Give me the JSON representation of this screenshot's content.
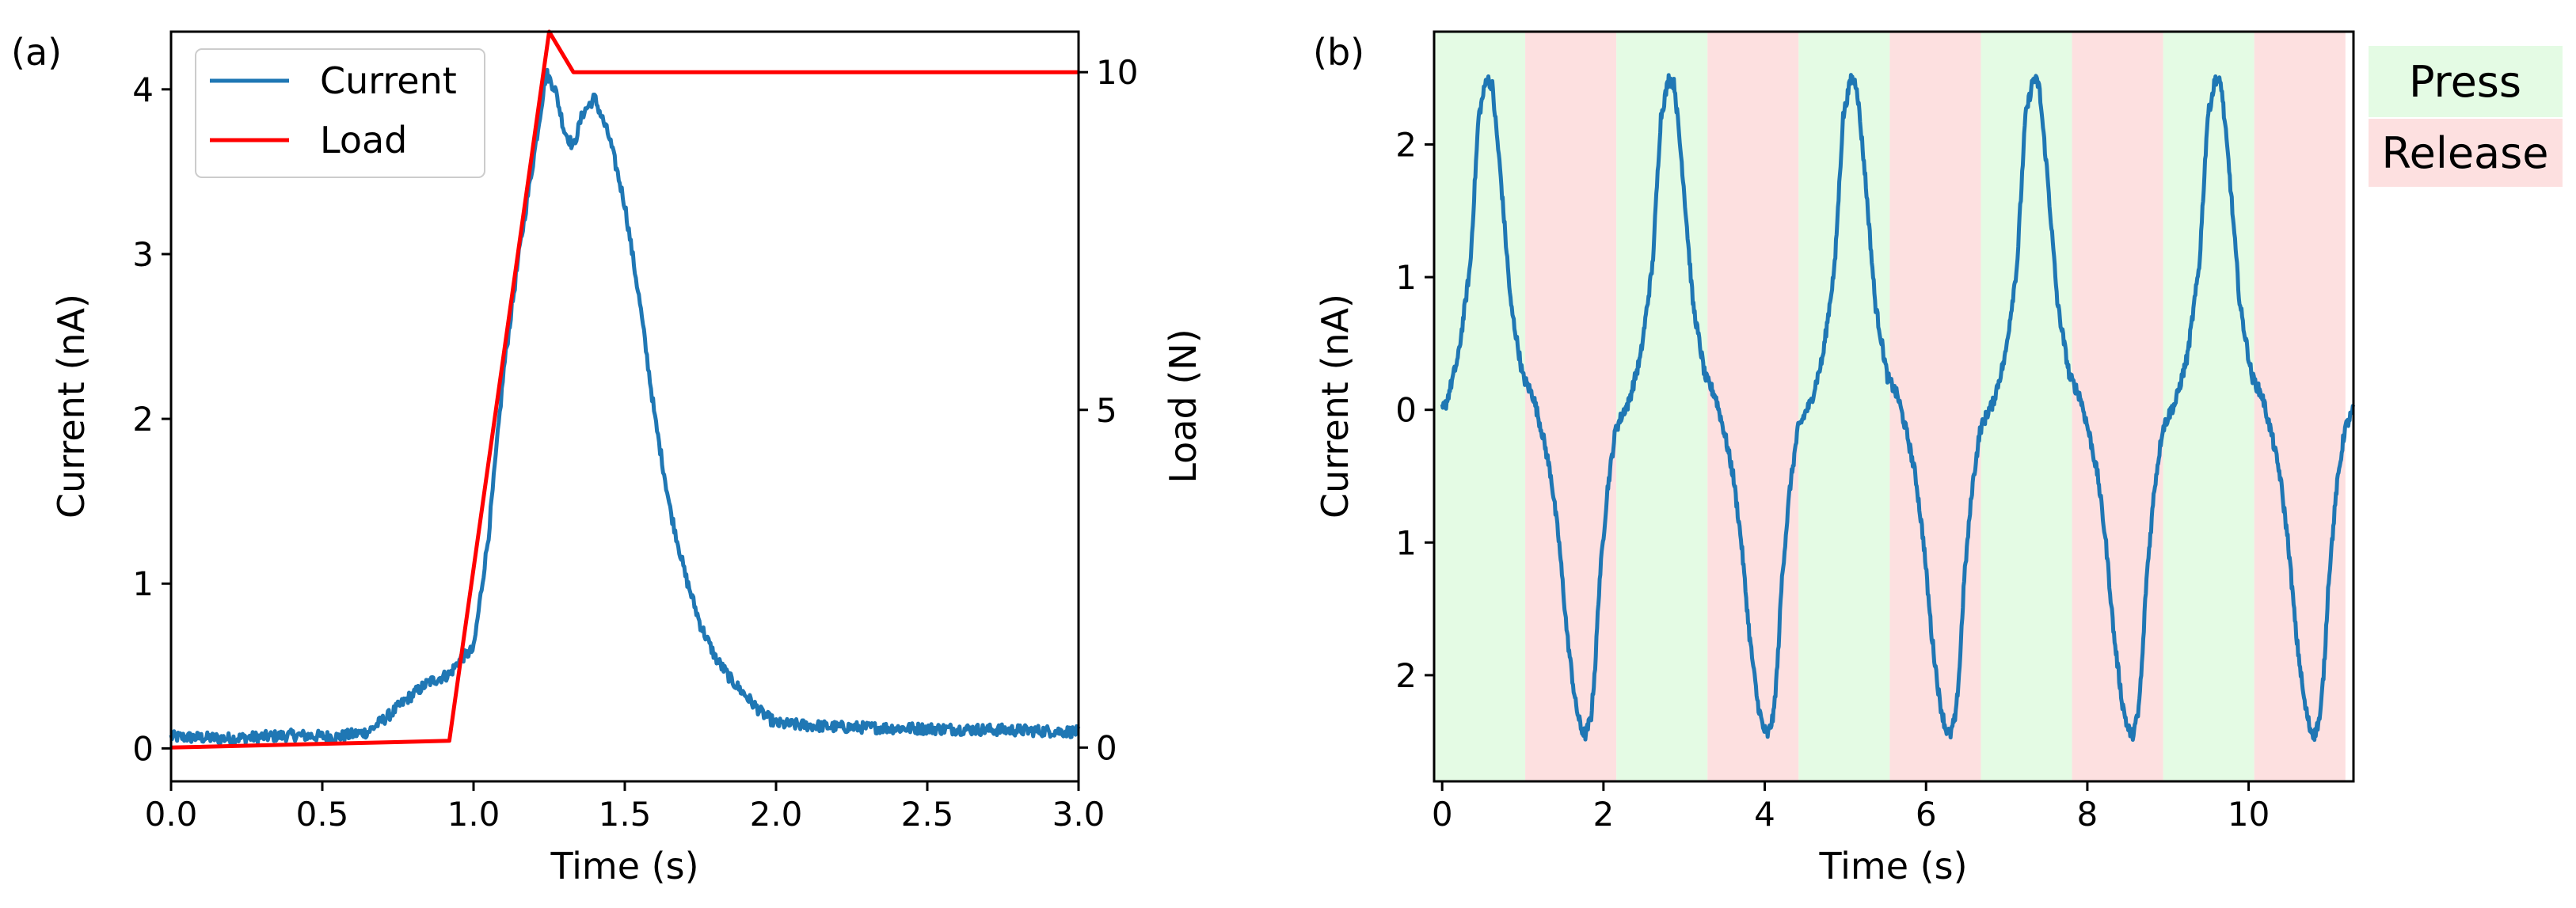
{
  "colors": {
    "current": "#1f77b4",
    "load": "#ff0000",
    "press_bg": "#e4fbe4",
    "release_bg": "#fde0e0",
    "axis": "#000000"
  },
  "chart_data": [
    {
      "id": "a",
      "type": "line",
      "panel_label": "(a)",
      "xlabel": "Time (s)",
      "ylabel": "Current (nA)",
      "y2label": "Load (N)",
      "xlim": [
        0,
        3
      ],
      "ylim": [
        -0.2,
        4.35
      ],
      "y2lim": [
        -0.5,
        10.6
      ],
      "xticks": [
        0,
        0.5,
        1,
        1.5,
        2,
        2.5,
        3
      ],
      "xticklabels": [
        "0.0",
        "0.5",
        "1.0",
        "1.5",
        "2.0",
        "2.5",
        "3.0"
      ],
      "yticks": [
        0,
        1,
        2,
        3,
        4
      ],
      "yticklabels": [
        "0",
        "1",
        "2",
        "3",
        "4"
      ],
      "y2ticks": [
        0,
        5,
        10
      ],
      "y2ticklabels": [
        "0",
        "5",
        "10"
      ],
      "legend": [
        "Current",
        "Load"
      ],
      "legend_position": "upper-left",
      "series": [
        {
          "name": "Current",
          "axis": "left",
          "x": [
            0,
            0.2,
            0.4,
            0.55,
            0.65,
            0.72,
            0.78,
            0.85,
            0.92,
            0.96,
            1.0,
            1.05,
            1.1,
            1.15,
            1.2,
            1.24,
            1.27,
            1.3,
            1.33,
            1.36,
            1.4,
            1.45,
            1.5,
            1.55,
            1.6,
            1.65,
            1.7,
            1.75,
            1.8,
            1.85,
            1.9,
            1.95,
            2.0,
            2.2,
            2.5,
            2.8,
            3.0
          ],
          "y": [
            0.07,
            0.06,
            0.08,
            0.07,
            0.1,
            0.2,
            0.3,
            0.4,
            0.45,
            0.55,
            0.6,
            1.3,
            2.3,
            3.0,
            3.6,
            4.1,
            4.0,
            3.75,
            3.65,
            3.85,
            3.95,
            3.7,
            3.3,
            2.7,
            2.0,
            1.45,
            1.05,
            0.75,
            0.55,
            0.42,
            0.32,
            0.22,
            0.15,
            0.13,
            0.12,
            0.11,
            0.1
          ]
        },
        {
          "name": "Load",
          "axis": "right",
          "x": [
            0,
            0.92,
            1.25,
            1.33,
            3.0
          ],
          "y": [
            0,
            0.1,
            10.6,
            10,
            10
          ]
        }
      ]
    },
    {
      "id": "b",
      "type": "line",
      "panel_label": "(b)",
      "xlabel": "Time (s)",
      "ylabel": "Current (nA)",
      "xlim": [
        -0.1,
        11.3
      ],
      "ylim": [
        -2.8,
        2.85
      ],
      "xticks": [
        0,
        2,
        4,
        6,
        8,
        10
      ],
      "xticklabels": [
        "0",
        "2",
        "4",
        "6",
        "8",
        "10"
      ],
      "yticks": [
        2,
        1,
        0,
        -1,
        -2
      ],
      "yticklabels": [
        "2",
        "1",
        "0",
        "1",
        "2"
      ],
      "legend": [
        "Press",
        "Release"
      ],
      "legend_position": "outside-right",
      "phase_period": 2.26,
      "phase_half": 1.13,
      "phase_count": 5,
      "series": [
        {
          "name": "Current",
          "cycle_template_t": [
            0,
            0.05,
            0.2,
            0.35,
            0.45,
            0.55,
            0.62,
            0.72,
            0.85,
            1.0,
            1.13,
            1.25,
            1.35,
            1.45,
            1.55,
            1.65,
            1.72,
            1.78,
            1.85,
            1.9,
            1.95,
            2.05,
            2.15,
            2.26
          ],
          "cycle_template_y": [
            0.0,
            0.05,
            0.4,
            1.1,
            2.2,
            2.5,
            2.45,
            1.8,
            0.8,
            0.25,
            0.1,
            -0.2,
            -0.5,
            -1.0,
            -1.7,
            -2.2,
            -2.4,
            -2.45,
            -2.3,
            -1.9,
            -1.3,
            -0.6,
            -0.15,
            0.0
          ],
          "cycles": 5,
          "end_t": 11.3
        }
      ]
    }
  ]
}
